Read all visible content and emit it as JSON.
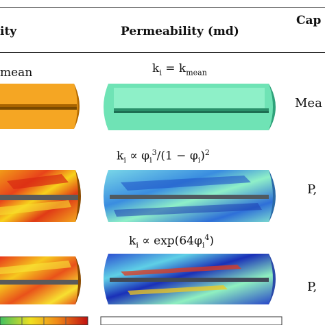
{
  "headers": {
    "left_fragment": "ity",
    "middle": "Permeability (md)",
    "right_fragment": "Cap"
  },
  "rows": [
    {
      "left_eq_fragment": "mean",
      "middle_eq": {
        "a": "k",
        "a_sub": "i",
        "b": " = k",
        "b_sub": "mean"
      },
      "right_fragment": "Mea"
    },
    {
      "middle_eq": {
        "a": "k",
        "a_sub": "i",
        "b": " ∝ φ",
        "b_sub": "i",
        "b_sup": "3",
        "c": "/(1 − φ",
        "c_sub": "i",
        "c_tail": ")",
        "c_sup": "2"
      },
      "right_fragment": "P,"
    },
    {
      "middle_eq": {
        "a": "k",
        "a_sub": "i",
        "b": " ∝ exp(64φ",
        "b_sub": "i",
        "b_sup": "4",
        "c_tail": ")"
      },
      "right_fragment": "P,"
    }
  ],
  "colors": {
    "orange": "#f5a623",
    "cyan": "#6fe3b5",
    "rule": "#222222"
  }
}
